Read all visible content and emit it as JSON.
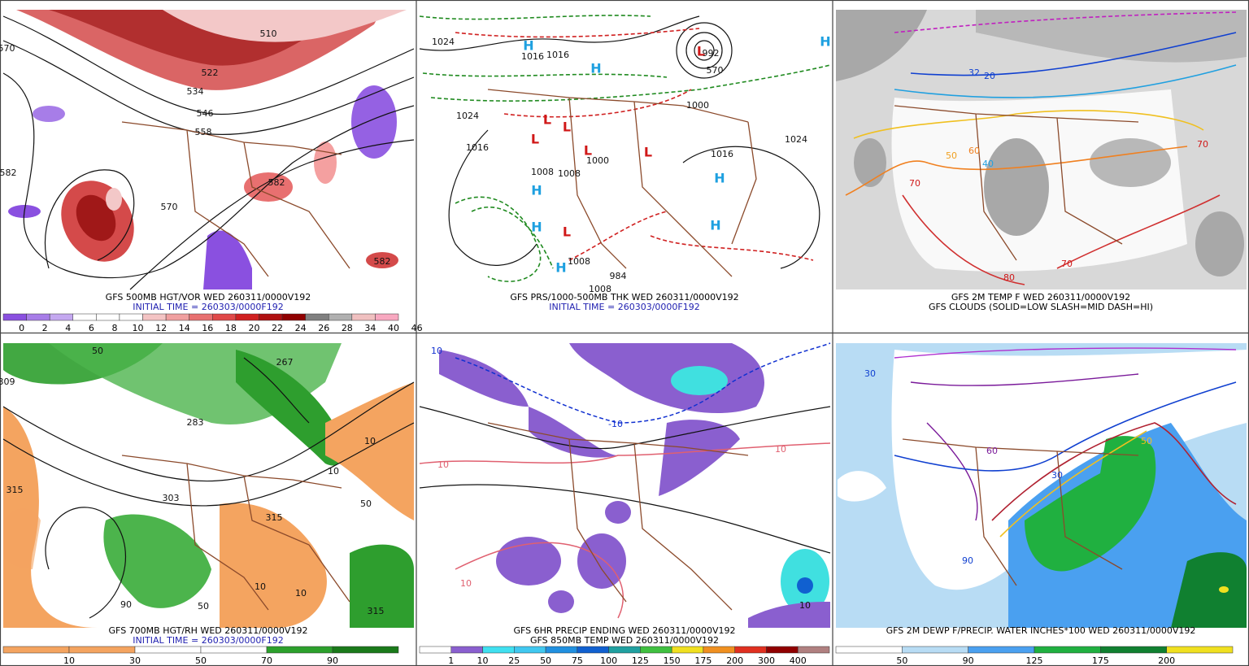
{
  "panels": [
    {
      "title": "GFS 500MB HGT/VOR WED 260311/0000V192",
      "subtitle": "INITIAL TIME = 260303/0000F192",
      "subtitle_color": "#1f1fb0",
      "colorbar": {
        "colors": [
          "#8a50e0",
          "#a77de8",
          "#c4a8f0",
          "#ffffff",
          "#ffffff",
          "#ffffff",
          "#f4c4c4",
          "#f0a0a0",
          "#e87070",
          "#e04848",
          "#d02020",
          "#b01010",
          "#900000",
          "#808080",
          "#b0b0b0",
          "#f0c0c0",
          "#f8a8c0"
        ],
        "labels": [
          0,
          2,
          4,
          6,
          8,
          10,
          12,
          14,
          16,
          18,
          20,
          22,
          24,
          26,
          28,
          34,
          40,
          46
        ]
      },
      "map_labels": [
        "510",
        "522",
        "534",
        "546",
        "558",
        "570",
        "582",
        "582",
        "582",
        "570"
      ]
    },
    {
      "title": "GFS PRS/1000-500MB THK WED 260311/0000V192",
      "subtitle": "INITIAL TIME = 260303/0000F192",
      "subtitle_color": "#1f1fb0",
      "map_labels": [
        "H",
        "H",
        "H",
        "H",
        "H",
        "H",
        "H",
        "H",
        "L",
        "L",
        "L",
        "L",
        "L",
        "L",
        "L",
        "1024",
        "1016",
        "1016",
        "1024",
        "1016",
        "1008",
        "1008",
        "1000",
        "1000",
        "1016",
        "1024",
        "1008",
        "1008",
        "984",
        "992",
        "570"
      ]
    },
    {
      "title": "GFS 2M TEMP F WED 260311/0000V192",
      "subtitle": "GFS CLOUDS (SOLID=LOW SLASH=MID DASH=HI)",
      "subtitle_color": "#000000",
      "map_labels": [
        "32",
        "20",
        "40",
        "50",
        "60",
        "70",
        "70",
        "80",
        "70"
      ]
    },
    {
      "title": "GFS 700MB HGT/RH WED 260311/0000V192",
      "subtitle": "INITIAL TIME = 260303/0000F192",
      "subtitle_color": "#1f1fb0",
      "colorbar": {
        "colors": [
          "#f4a460",
          "#f4a460",
          "#ffffff",
          "#ffffff",
          "#2ca02c",
          "#1a7a1a"
        ],
        "labels": [
          10,
          30,
          50,
          70,
          90
        ]
      },
      "map_labels": [
        "50",
        "267",
        "309",
        "283",
        "303",
        "315",
        "315",
        "10",
        "10",
        "50",
        "10",
        "10",
        "50",
        "315",
        "90"
      ]
    },
    {
      "title": "GFS 6HR PRECIP ENDING WED 260311/0000V192",
      "subtitle": "GFS 850MB TEMP WED 260311/0000V192",
      "subtitle_color": "#000000",
      "colorbar": {
        "colors": [
          "#ffffff",
          "#8a5fcf",
          "#40e0f0",
          "#40c8f0",
          "#2090e0",
          "#1060d0",
          "#20a0a0",
          "#40c040",
          "#f0e020",
          "#f09020",
          "#e03020",
          "#900000",
          "#b08080"
        ],
        "labels": [
          1,
          10,
          25,
          50,
          75,
          100,
          125,
          150,
          175,
          200,
          300,
          400
        ]
      },
      "map_labels": [
        "10",
        "-10",
        "10",
        "10",
        "10",
        "10"
      ]
    },
    {
      "title": "GFS 2M DEWP F/PRECIP. WATER INCHES*100 WED 260311/0000V192",
      "subtitle_color": "#000000",
      "colorbar": {
        "colors": [
          "#ffffff",
          "#b8dcf4",
          "#4aa0f0",
          "#20b040",
          "#108030",
          "#f0e020"
        ],
        "labels": [
          50,
          90,
          125,
          175,
          200
        ]
      },
      "map_labels": [
        "30",
        "50",
        "30",
        "60",
        "90"
      ]
    }
  ]
}
